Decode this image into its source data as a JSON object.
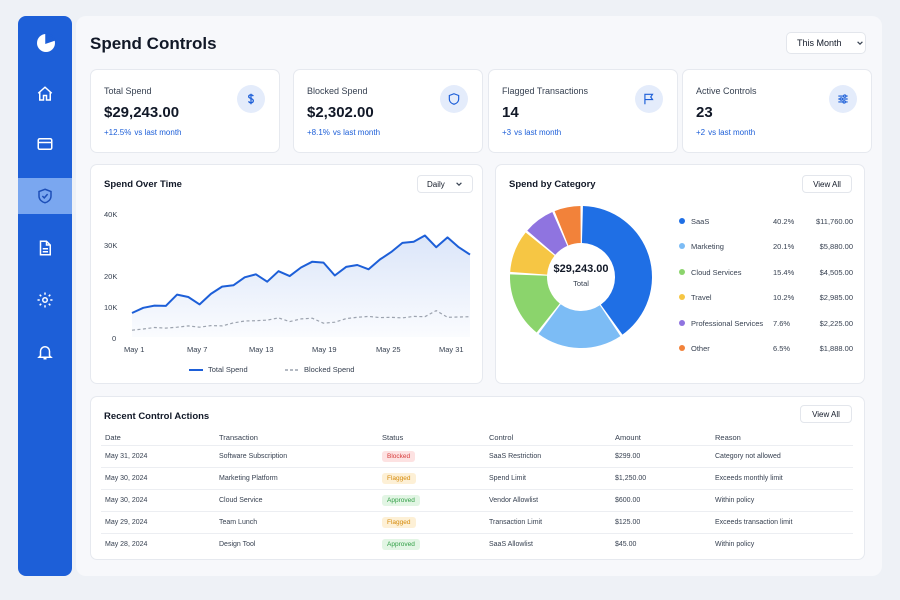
{
  "app": {
    "title": "Spend Controls",
    "period": "This Month"
  },
  "sidebar": {
    "items": [
      {
        "icon": "home-icon"
      },
      {
        "icon": "card-icon"
      },
      {
        "icon": "shield-check-icon",
        "active": true
      },
      {
        "icon": "document-icon"
      },
      {
        "icon": "gear-icon"
      },
      {
        "icon": "bell-icon"
      }
    ]
  },
  "stats": [
    {
      "label": "Total Spend",
      "value": "$29,243.00",
      "delta": "+12.5%",
      "note": "vs last month",
      "icon": "dollar-icon"
    },
    {
      "label": "Blocked Spend",
      "value": "$2,302.00",
      "delta": "+8.1%",
      "note": "vs last month",
      "icon": "shield-icon"
    },
    {
      "label": "Flagged Transactions",
      "value": "14",
      "delta": "+3",
      "note": "vs last month",
      "icon": "flag-icon"
    },
    {
      "label": "Active Controls",
      "value": "23",
      "delta": "+2",
      "note": "vs last month",
      "icon": "sliders-icon"
    }
  ],
  "spend_over_time": {
    "title": "Spend Over Time",
    "interval": "Daily",
    "yticks": [
      "40K",
      "30K",
      "20K",
      "10K",
      "0"
    ],
    "xticks": [
      "May 1",
      "May 7",
      "May 13",
      "May 19",
      "May 25",
      "May 31"
    ]
  },
  "category": {
    "title": "Spend by Category",
    "view_all": "View All",
    "total_value": "$29,243.00",
    "total_label": "Total",
    "items": [
      {
        "name": "SaaS",
        "pct": "40.2%",
        "amount": "$11,760.00",
        "color": "#1f6fe5"
      },
      {
        "name": "Marketing",
        "pct": "20.1%",
        "amount": "$5,880.00",
        "color": "#7cbcf5"
      },
      {
        "name": "Cloud Services",
        "pct": "15.4%",
        "amount": "$4,505.00",
        "color": "#8bd46c"
      },
      {
        "name": "Travel",
        "pct": "10.2%",
        "amount": "$2,985.00",
        "color": "#f6c644"
      },
      {
        "name": "Professional Services",
        "pct": "7.6%",
        "amount": "$2,225.00",
        "color": "#8f74e0"
      },
      {
        "name": "Other",
        "pct": "6.5%",
        "amount": "$1,888.00",
        "color": "#f2823a"
      }
    ]
  },
  "recent": {
    "title": "Recent Control Actions",
    "view_all": "View All",
    "columns": [
      "Date",
      "Transaction",
      "Status",
      "Control",
      "Amount",
      "Reason"
    ],
    "rows": [
      [
        "May 31, 2024",
        "Software Subscription",
        "Blocked",
        "SaaS Restriction",
        "$299.00",
        "Category not allowed"
      ],
      [
        "May 30, 2024",
        "Marketing Platform",
        "Flagged",
        "Spend Limit",
        "$1,250.00",
        "Exceeds monthly limit"
      ],
      [
        "May 30, 2024",
        "Cloud Service",
        "Approved",
        "Vendor Allowlist",
        "$600.00",
        "Within policy"
      ],
      [
        "May 29, 2024",
        "Team Lunch",
        "Flagged",
        "Transaction Limit",
        "$125.00",
        "Exceeds transaction limit"
      ],
      [
        "May 28, 2024",
        "Design Tool",
        "Approved",
        "SaaS Allowlist",
        "$45.00",
        "Within policy"
      ]
    ]
  },
  "chart_data": [
    {
      "type": "line",
      "title": "Spend Over Time",
      "x": [
        "May 1",
        "May 2",
        "May 3",
        "May 4",
        "May 5",
        "May 6",
        "May 7",
        "May 8",
        "May 9",
        "May 10",
        "May 11",
        "May 12",
        "May 13",
        "May 14",
        "May 15",
        "May 16",
        "May 17",
        "May 18",
        "May 19",
        "May 20",
        "May 21",
        "May 22",
        "May 23",
        "May 24",
        "May 25",
        "May 26",
        "May 27",
        "May 28",
        "May 29",
        "May 30",
        "May 31"
      ],
      "ylim": [
        0,
        40000
      ],
      "series": [
        {
          "name": "Total Spend",
          "color": "#1d5fd8",
          "style": "solid",
          "values": [
            7800,
            9500,
            10200,
            10100,
            13800,
            13000,
            10600,
            14000,
            16400,
            16800,
            19400,
            20400,
            18000,
            21400,
            19800,
            22600,
            24500,
            24200,
            20000,
            22800,
            23400,
            22000,
            25200,
            27600,
            30600,
            31000,
            33000,
            29200,
            32400,
            29200,
            26800
          ]
        },
        {
          "name": "Blocked Spend",
          "color": "#9ca3af",
          "style": "dashed",
          "values": [
            2200,
            2600,
            3100,
            2900,
            3200,
            3600,
            3200,
            3700,
            3600,
            4600,
            5200,
            5300,
            5500,
            6200,
            5000,
            5900,
            6100,
            4500,
            4800,
            6000,
            6400,
            6700,
            6300,
            6400,
            6200,
            6700,
            6600,
            8600,
            6400,
            6500,
            6600
          ]
        }
      ],
      "grid": false,
      "legend": "bottom"
    },
    {
      "type": "pie",
      "title": "Spend by Category",
      "categories": [
        "SaaS",
        "Marketing",
        "Cloud Services",
        "Travel",
        "Professional Services",
        "Other"
      ],
      "values": [
        40.2,
        20.1,
        15.4,
        10.2,
        7.6,
        6.5
      ]
    }
  ]
}
